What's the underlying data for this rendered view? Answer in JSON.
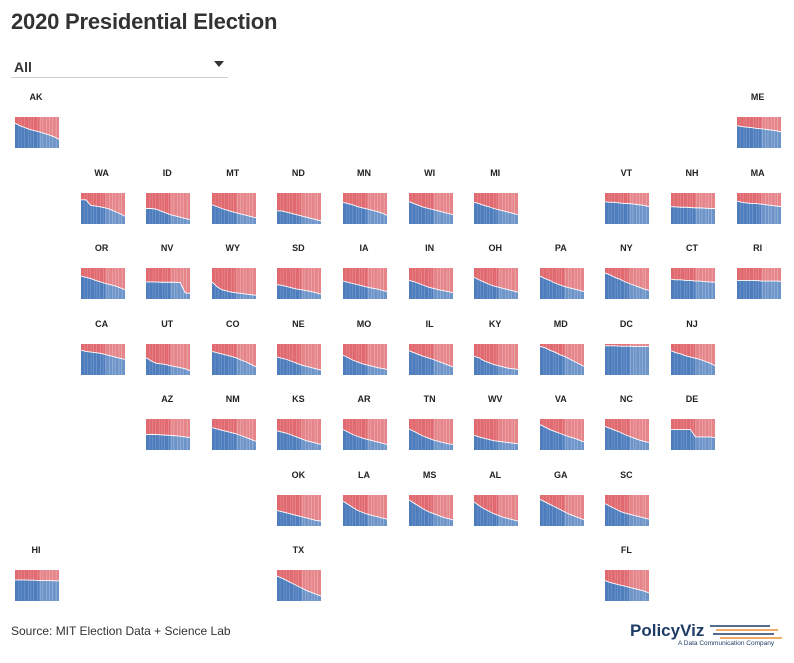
{
  "title": "2020 Presidential Election",
  "filter": {
    "value": "All"
  },
  "source": "Source: MIT Election Data + Science Lab",
  "logo": {
    "name": "PolicyViz",
    "tagline": "A Data Communication Company"
  },
  "colors": {
    "democrat": "#4e7dbd",
    "republican": "#e06a70",
    "background": "#ffffff"
  },
  "chart_data": {
    "type": "area",
    "ylim": [
      0,
      1
    ],
    "series": [
      {
        "color": "#4e7dbd"
      },
      {
        "color": "#e06a70"
      }
    ],
    "states": [
      {
        "state": "AK",
        "row": 0,
        "col": 0,
        "values": [
          0.8,
          0.72,
          0.66,
          0.6,
          0.56,
          0.52,
          0.47,
          0.42,
          0.36,
          0.28
        ]
      },
      {
        "state": "ME",
        "row": 0,
        "col": 11,
        "values": [
          0.72,
          0.69,
          0.67,
          0.66,
          0.63,
          0.62,
          0.6,
          0.58,
          0.56,
          0.52
        ]
      },
      {
        "state": "WA",
        "row": 1,
        "col": 1,
        "values": [
          0.78,
          0.78,
          0.6,
          0.58,
          0.55,
          0.52,
          0.47,
          0.4,
          0.33,
          0.25
        ]
      },
      {
        "state": "ID",
        "row": 1,
        "col": 2,
        "values": [
          0.5,
          0.5,
          0.48,
          0.42,
          0.36,
          0.3,
          0.26,
          0.22,
          0.18,
          0.14
        ]
      },
      {
        "state": "MT",
        "row": 1,
        "col": 3,
        "values": [
          0.62,
          0.56,
          0.5,
          0.45,
          0.4,
          0.36,
          0.32,
          0.28,
          0.24,
          0.2
        ]
      },
      {
        "state": "ND",
        "row": 1,
        "col": 4,
        "values": [
          0.42,
          0.42,
          0.38,
          0.34,
          0.3,
          0.26,
          0.22,
          0.18,
          0.14,
          0.1
        ]
      },
      {
        "state": "MN",
        "row": 1,
        "col": 5,
        "values": [
          0.7,
          0.66,
          0.62,
          0.56,
          0.52,
          0.48,
          0.44,
          0.4,
          0.35,
          0.28
        ]
      },
      {
        "state": "WI",
        "row": 1,
        "col": 6,
        "values": [
          0.72,
          0.66,
          0.6,
          0.54,
          0.5,
          0.46,
          0.42,
          0.38,
          0.34,
          0.3
        ]
      },
      {
        "state": "MI",
        "row": 1,
        "col": 7,
        "values": [
          0.7,
          0.66,
          0.6,
          0.56,
          0.5,
          0.46,
          0.42,
          0.38,
          0.34,
          0.3
        ]
      },
      {
        "state": "VT",
        "row": 1,
        "col": 9,
        "values": [
          0.72,
          0.7,
          0.7,
          0.68,
          0.66,
          0.66,
          0.64,
          0.62,
          0.6,
          0.56
        ]
      },
      {
        "state": "NH",
        "row": 1,
        "col": 10,
        "values": [
          0.56,
          0.55,
          0.54,
          0.54,
          0.53,
          0.52,
          0.52,
          0.51,
          0.5,
          0.5
        ]
      },
      {
        "state": "MA",
        "row": 1,
        "col": 11,
        "values": [
          0.74,
          0.7,
          0.68,
          0.66,
          0.66,
          0.64,
          0.62,
          0.6,
          0.58,
          0.56
        ]
      },
      {
        "state": "OR",
        "row": 2,
        "col": 1,
        "values": [
          0.74,
          0.7,
          0.66,
          0.6,
          0.55,
          0.5,
          0.46,
          0.42,
          0.36,
          0.3
        ]
      },
      {
        "state": "NV",
        "row": 2,
        "col": 2,
        "values": [
          0.55,
          0.55,
          0.55,
          0.54,
          0.54,
          0.54,
          0.54,
          0.53,
          0.2,
          0.18
        ]
      },
      {
        "state": "WY",
        "row": 2,
        "col": 3,
        "values": [
          0.55,
          0.4,
          0.3,
          0.26,
          0.22,
          0.2,
          0.18,
          0.16,
          0.14,
          0.12
        ]
      },
      {
        "state": "SD",
        "row": 2,
        "col": 4,
        "values": [
          0.46,
          0.44,
          0.4,
          0.36,
          0.32,
          0.3,
          0.27,
          0.24,
          0.2,
          0.16
        ]
      },
      {
        "state": "IA",
        "row": 2,
        "col": 5,
        "values": [
          0.58,
          0.54,
          0.5,
          0.46,
          0.42,
          0.38,
          0.35,
          0.32,
          0.28,
          0.24
        ]
      },
      {
        "state": "IN",
        "row": 2,
        "col": 6,
        "values": [
          0.6,
          0.56,
          0.5,
          0.44,
          0.38,
          0.34,
          0.3,
          0.27,
          0.24,
          0.2
        ]
      },
      {
        "state": "OH",
        "row": 2,
        "col": 7,
        "values": [
          0.7,
          0.62,
          0.55,
          0.48,
          0.42,
          0.38,
          0.34,
          0.3,
          0.26,
          0.22
        ]
      },
      {
        "state": "PA",
        "row": 2,
        "col": 8,
        "values": [
          0.74,
          0.66,
          0.6,
          0.52,
          0.46,
          0.4,
          0.36,
          0.32,
          0.28,
          0.24
        ]
      },
      {
        "state": "NY",
        "row": 2,
        "col": 9,
        "values": [
          0.84,
          0.78,
          0.7,
          0.64,
          0.56,
          0.5,
          0.44,
          0.38,
          0.32,
          0.28
        ]
      },
      {
        "state": "CT",
        "row": 2,
        "col": 10,
        "values": [
          0.64,
          0.62,
          0.62,
          0.6,
          0.6,
          0.58,
          0.58,
          0.56,
          0.55,
          0.54
        ]
      },
      {
        "state": "RI",
        "row": 2,
        "col": 11,
        "values": [
          0.6,
          0.6,
          0.6,
          0.6,
          0.6,
          0.58,
          0.58,
          0.58,
          0.58,
          0.57
        ]
      },
      {
        "state": "CA",
        "row": 3,
        "col": 1,
        "values": [
          0.8,
          0.76,
          0.74,
          0.72,
          0.7,
          0.66,
          0.62,
          0.58,
          0.54,
          0.5
        ]
      },
      {
        "state": "UT",
        "row": 3,
        "col": 2,
        "values": [
          0.56,
          0.46,
          0.38,
          0.36,
          0.34,
          0.3,
          0.27,
          0.24,
          0.2,
          0.14
        ]
      },
      {
        "state": "CO",
        "row": 3,
        "col": 3,
        "values": [
          0.76,
          0.72,
          0.68,
          0.64,
          0.6,
          0.55,
          0.48,
          0.42,
          0.34,
          0.26
        ]
      },
      {
        "state": "NE",
        "row": 3,
        "col": 4,
        "values": [
          0.58,
          0.54,
          0.5,
          0.44,
          0.38,
          0.32,
          0.28,
          0.24,
          0.2,
          0.16
        ]
      },
      {
        "state": "MO",
        "row": 3,
        "col": 5,
        "values": [
          0.64,
          0.56,
          0.48,
          0.42,
          0.36,
          0.32,
          0.28,
          0.24,
          0.21,
          0.18
        ]
      },
      {
        "state": "IL",
        "row": 3,
        "col": 6,
        "values": [
          0.78,
          0.72,
          0.66,
          0.6,
          0.55,
          0.5,
          0.44,
          0.38,
          0.32,
          0.26
        ]
      },
      {
        "state": "KY",
        "row": 3,
        "col": 7,
        "values": [
          0.6,
          0.56,
          0.46,
          0.4,
          0.34,
          0.3,
          0.26,
          0.22,
          0.2,
          0.18
        ]
      },
      {
        "state": "MD",
        "row": 3,
        "col": 8,
        "values": [
          0.92,
          0.88,
          0.8,
          0.74,
          0.66,
          0.6,
          0.52,
          0.44,
          0.36,
          0.28
        ]
      },
      {
        "state": "DC",
        "row": 3,
        "col": 9,
        "values": [
          0.94,
          0.94,
          0.94,
          0.93,
          0.93,
          0.93,
          0.92,
          0.92,
          0.92,
          0.92
        ]
      },
      {
        "state": "NJ",
        "row": 3,
        "col": 10,
        "values": [
          0.78,
          0.72,
          0.68,
          0.62,
          0.58,
          0.54,
          0.5,
          0.44,
          0.38,
          0.3
        ]
      },
      {
        "state": "AZ",
        "row": 4,
        "col": 2,
        "values": [
          0.5,
          0.5,
          0.5,
          0.49,
          0.48,
          0.47,
          0.46,
          0.44,
          0.42,
          0.4
        ]
      },
      {
        "state": "NM",
        "row": 4,
        "col": 3,
        "values": [
          0.72,
          0.68,
          0.64,
          0.6,
          0.56,
          0.52,
          0.46,
          0.4,
          0.34,
          0.28
        ]
      },
      {
        "state": "KS",
        "row": 4,
        "col": 4,
        "values": [
          0.62,
          0.58,
          0.54,
          0.48,
          0.42,
          0.36,
          0.3,
          0.26,
          0.22,
          0.18
        ]
      },
      {
        "state": "AR",
        "row": 4,
        "col": 5,
        "values": [
          0.66,
          0.58,
          0.5,
          0.44,
          0.38,
          0.34,
          0.3,
          0.26,
          0.22,
          0.18
        ]
      },
      {
        "state": "TN",
        "row": 4,
        "col": 6,
        "values": [
          0.68,
          0.6,
          0.52,
          0.44,
          0.38,
          0.32,
          0.28,
          0.24,
          0.2,
          0.18
        ]
      },
      {
        "state": "WV",
        "row": 4,
        "col": 7,
        "values": [
          0.48,
          0.42,
          0.38,
          0.34,
          0.3,
          0.28,
          0.26,
          0.24,
          0.22,
          0.2
        ]
      },
      {
        "state": "VA",
        "row": 4,
        "col": 8,
        "values": [
          0.82,
          0.74,
          0.66,
          0.6,
          0.54,
          0.48,
          0.42,
          0.38,
          0.32,
          0.26
        ]
      },
      {
        "state": "NC",
        "row": 4,
        "col": 9,
        "values": [
          0.76,
          0.7,
          0.64,
          0.58,
          0.5,
          0.44,
          0.38,
          0.32,
          0.28,
          0.24
        ]
      },
      {
        "state": "DE",
        "row": 4,
        "col": 10,
        "values": [
          0.66,
          0.66,
          0.66,
          0.66,
          0.66,
          0.42,
          0.42,
          0.42,
          0.42,
          0.4
        ]
      },
      {
        "state": "OK",
        "row": 5,
        "col": 4,
        "values": [
          0.5,
          0.46,
          0.42,
          0.38,
          0.34,
          0.3,
          0.26,
          0.22,
          0.18,
          0.16
        ]
      },
      {
        "state": "LA",
        "row": 5,
        "col": 5,
        "values": [
          0.8,
          0.7,
          0.6,
          0.5,
          0.44,
          0.38,
          0.34,
          0.3,
          0.26,
          0.22
        ]
      },
      {
        "state": "MS",
        "row": 5,
        "col": 6,
        "values": [
          0.84,
          0.74,
          0.64,
          0.54,
          0.46,
          0.4,
          0.34,
          0.28,
          0.24,
          0.2
        ]
      },
      {
        "state": "AL",
        "row": 5,
        "col": 7,
        "values": [
          0.78,
          0.66,
          0.56,
          0.48,
          0.4,
          0.34,
          0.28,
          0.24,
          0.2,
          0.16
        ]
      },
      {
        "state": "GA",
        "row": 5,
        "col": 8,
        "values": [
          0.86,
          0.78,
          0.7,
          0.62,
          0.54,
          0.46,
          0.38,
          0.32,
          0.26,
          0.2
        ]
      },
      {
        "state": "SC",
        "row": 5,
        "col": 9,
        "values": [
          0.72,
          0.64,
          0.56,
          0.48,
          0.42,
          0.38,
          0.34,
          0.3,
          0.26,
          0.22
        ]
      },
      {
        "state": "HI",
        "row": 6,
        "col": 0,
        "values": [
          0.68,
          0.68,
          0.68,
          0.67,
          0.67,
          0.66,
          0.66,
          0.66,
          0.65,
          0.65
        ]
      },
      {
        "state": "TX",
        "row": 6,
        "col": 4,
        "values": [
          0.8,
          0.74,
          0.66,
          0.58,
          0.5,
          0.42,
          0.34,
          0.28,
          0.22,
          0.16
        ]
      },
      {
        "state": "FL",
        "row": 6,
        "col": 9,
        "values": [
          0.66,
          0.6,
          0.56,
          0.52,
          0.48,
          0.44,
          0.4,
          0.36,
          0.32,
          0.26
        ]
      }
    ]
  }
}
